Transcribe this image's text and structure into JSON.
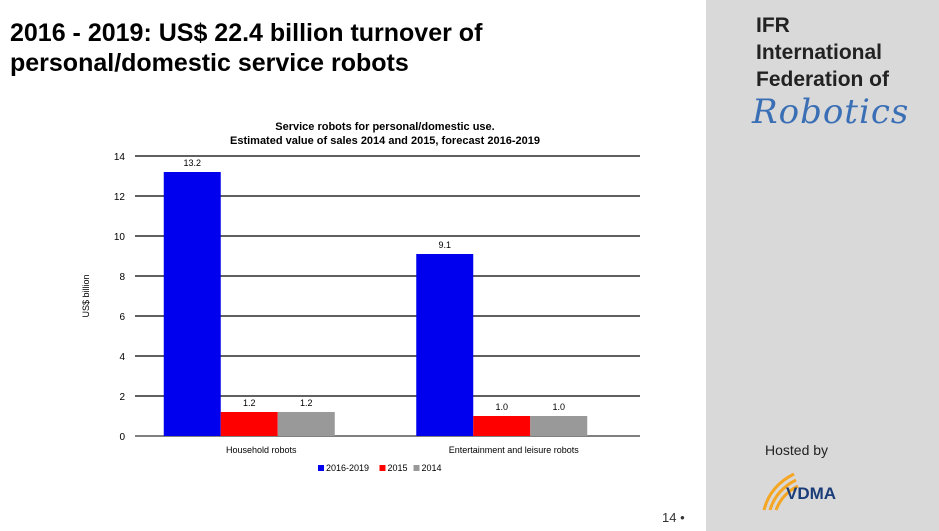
{
  "slide": {
    "title": "2016 - 2019: US$ 22.4 billion turnover of personal/domestic service robots",
    "page_number": "14 •"
  },
  "logo": {
    "line1": "IFR",
    "line2": "International",
    "line3": "Federation of",
    "script": "Robotics",
    "vertical_script": "Robotics"
  },
  "sponsor": {
    "hosted_label": "Hosted by",
    "name": "VDMA"
  },
  "colors": {
    "s2016_2019": "#0000ee",
    "s2015": "#ff0000",
    "s2014": "#999999",
    "panel": "#d9d9d9"
  },
  "chart_data": {
    "type": "bar",
    "title_line1": "Service robots for personal/domestic use.",
    "title_line2": "Estimated value of sales 2014 and 2015, forecast 2016-2019",
    "ylabel": "US$ billion",
    "xlabel": "",
    "ylim": [
      0,
      14
    ],
    "yticks": [
      0,
      2,
      4,
      6,
      8,
      10,
      12,
      14
    ],
    "grid": true,
    "legend_position": "bottom",
    "categories": [
      "Household robots",
      "Entertainment and leisure robots"
    ],
    "series": [
      {
        "name": "2016-2019",
        "values": [
          13.2,
          9.1
        ],
        "labels": [
          "13.2",
          "9.1"
        ],
        "color": "#0000ee"
      },
      {
        "name": "2015",
        "values": [
          1.2,
          1.0
        ],
        "labels": [
          "1.2",
          "1.0"
        ],
        "color": "#ff0000"
      },
      {
        "name": "2014",
        "values": [
          1.2,
          1.0
        ],
        "labels": [
          "1.2",
          "1.0"
        ],
        "color": "#999999"
      }
    ]
  }
}
